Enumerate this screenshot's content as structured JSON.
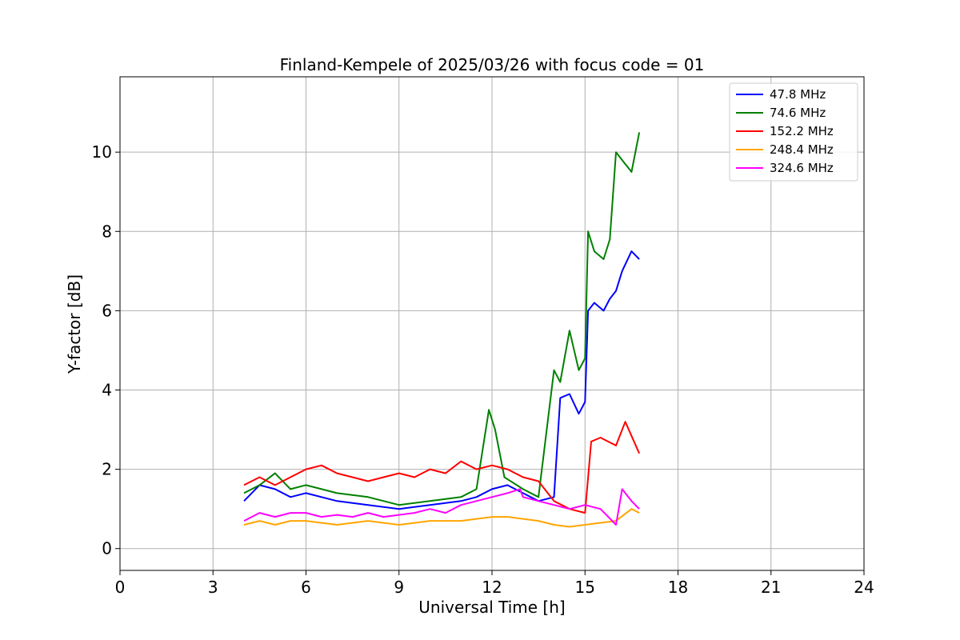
{
  "chart_data": {
    "type": "line",
    "title": "Finland-Kempele of 2025/03/26 with focus code = 01",
    "xlabel": "Universal Time [h]",
    "ylabel": "Y-factor [dB]",
    "xlim": [
      0,
      24
    ],
    "ylim": [
      -0.55,
      11.9
    ],
    "xticks": [
      0,
      3,
      6,
      9,
      12,
      15,
      18,
      21,
      24
    ],
    "yticks": [
      0,
      2,
      4,
      6,
      8,
      10
    ],
    "grid": true,
    "legend_position": "top-right",
    "series": [
      {
        "name": "  47.8 MHz",
        "color": "#0000ff",
        "x": [
          4.0,
          4.5,
          5.0,
          5.5,
          6.0,
          7.0,
          8.0,
          9.0,
          10.0,
          11.0,
          11.5,
          12.0,
          12.5,
          13.0,
          13.5,
          14.0,
          14.2,
          14.5,
          14.8,
          15.0,
          15.1,
          15.3,
          15.6,
          15.8,
          16.0,
          16.2,
          16.5,
          16.75
        ],
        "y": [
          1.2,
          1.6,
          1.5,
          1.3,
          1.4,
          1.2,
          1.1,
          1.0,
          1.1,
          1.2,
          1.3,
          1.5,
          1.6,
          1.4,
          1.2,
          1.3,
          3.8,
          3.9,
          3.4,
          3.7,
          6.0,
          6.2,
          6.0,
          6.3,
          6.5,
          7.0,
          7.5,
          7.3
        ]
      },
      {
        "name": "  74.6 MHz",
        "color": "#008000",
        "x": [
          4.0,
          4.5,
          5.0,
          5.5,
          6.0,
          7.0,
          8.0,
          9.0,
          10.0,
          11.0,
          11.5,
          11.9,
          12.1,
          12.4,
          12.8,
          13.0,
          13.5,
          14.0,
          14.2,
          14.5,
          14.8,
          15.0,
          15.1,
          15.3,
          15.6,
          15.8,
          16.0,
          16.2,
          16.5,
          16.75
        ],
        "y": [
          1.4,
          1.6,
          1.9,
          1.5,
          1.6,
          1.4,
          1.3,
          1.1,
          1.2,
          1.3,
          1.5,
          3.5,
          3.0,
          1.8,
          1.6,
          1.5,
          1.3,
          4.5,
          4.2,
          5.5,
          4.5,
          4.8,
          8.0,
          7.5,
          7.3,
          7.8,
          10.0,
          9.8,
          9.5,
          10.5
        ]
      },
      {
        "name": "  152.2 MHz",
        "color": "#ff0000",
        "x": [
          4.0,
          4.5,
          5.0,
          5.5,
          6.0,
          6.5,
          7.0,
          7.5,
          8.0,
          8.5,
          9.0,
          9.5,
          10.0,
          10.5,
          11.0,
          11.5,
          12.0,
          12.5,
          13.0,
          13.5,
          14.0,
          14.5,
          15.0,
          15.2,
          15.5,
          16.0,
          16.3,
          16.75
        ],
        "y": [
          1.6,
          1.8,
          1.6,
          1.8,
          2.0,
          2.1,
          1.9,
          1.8,
          1.7,
          1.8,
          1.9,
          1.8,
          2.0,
          1.9,
          2.2,
          2.0,
          2.1,
          2.0,
          1.8,
          1.7,
          1.2,
          1.0,
          0.9,
          2.7,
          2.8,
          2.6,
          3.2,
          2.4
        ]
      },
      {
        "name": "  248.4 MHz",
        "color": "#ffa500",
        "x": [
          4.0,
          4.5,
          5.0,
          5.5,
          6.0,
          7.0,
          8.0,
          9.0,
          10.0,
          11.0,
          12.0,
          12.5,
          13.0,
          13.5,
          14.0,
          14.5,
          15.0,
          15.5,
          16.0,
          16.5,
          16.75
        ],
        "y": [
          0.6,
          0.7,
          0.6,
          0.7,
          0.7,
          0.6,
          0.7,
          0.6,
          0.7,
          0.7,
          0.8,
          0.8,
          0.75,
          0.7,
          0.6,
          0.55,
          0.6,
          0.65,
          0.7,
          1.0,
          0.9
        ]
      },
      {
        "name": "  324.6 MHz",
        "color": "#ff00ff",
        "x": [
          4.0,
          4.5,
          5.0,
          5.5,
          6.0,
          6.5,
          7.0,
          7.5,
          8.0,
          8.5,
          9.0,
          9.5,
          10.0,
          10.5,
          11.0,
          11.5,
          12.0,
          12.5,
          12.9,
          13.0,
          13.5,
          14.0,
          14.5,
          15.0,
          15.5,
          16.0,
          16.2,
          16.5,
          16.75
        ],
        "y": [
          0.7,
          0.9,
          0.8,
          0.9,
          0.9,
          0.8,
          0.85,
          0.8,
          0.9,
          0.8,
          0.85,
          0.9,
          1.0,
          0.9,
          1.1,
          1.2,
          1.3,
          1.4,
          1.5,
          1.3,
          1.2,
          1.1,
          1.0,
          1.1,
          1.0,
          0.6,
          1.5,
          1.2,
          1.0
        ]
      }
    ]
  }
}
